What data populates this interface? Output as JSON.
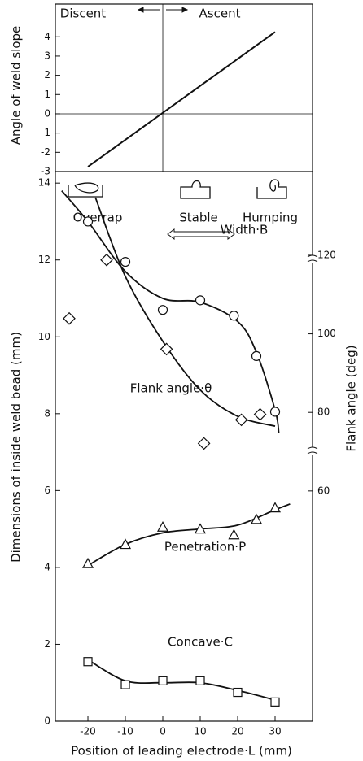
{
  "chart_data": [
    {
      "type": "line",
      "ylabel": "Angle of weld slope",
      "xlim": [
        -28.7,
        40
      ],
      "ylim": [
        -3,
        5.7
      ],
      "yticks": [
        -3,
        -2,
        -1,
        0,
        1,
        2,
        3,
        4
      ],
      "x": [
        -20,
        30
      ],
      "values": [
        -2.75,
        4.25
      ],
      "color": "#111111",
      "annotations": [
        "Discent",
        "Ascent"
      ]
    },
    {
      "type": "scatter",
      "xlabel": "Position of leading electrode·L (mm)",
      "ylabel": "Dimensions of inside weld bead (mm)",
      "y2label": "Flank angle (deg)",
      "xlim": [
        -28.7,
        40
      ],
      "xticks": [
        -20,
        -10,
        0,
        10,
        20,
        30
      ],
      "ylim": [
        0,
        14.3
      ],
      "yticks": [
        0,
        2,
        4,
        6,
        8,
        10,
        12,
        14
      ],
      "y2lim": [
        1.4,
        141.3
      ],
      "y2ticks": [
        60,
        80,
        100,
        120
      ],
      "annotations": [
        "Overrap",
        "Stable",
        "Humping"
      ],
      "series": [
        {
          "name": "Width·B",
          "marker": "circle",
          "color": "#111111",
          "x": [
            -20,
            -10,
            0,
            10,
            19,
            25,
            30
          ],
          "values": [
            13.0,
            11.95,
            10.7,
            10.95,
            10.55,
            9.5,
            8.05
          ],
          "curve_x": [
            -27,
            -20,
            -10,
            0,
            10,
            20,
            25,
            30,
            31
          ],
          "curve_values": [
            13.8,
            13.0,
            11.7,
            11.0,
            10.9,
            10.4,
            9.6,
            8.1,
            7.5
          ]
        },
        {
          "name": "Flank angle·θ",
          "marker": "diamond",
          "color": "#111111",
          "axis": "y2",
          "x": [
            -25,
            -15,
            1,
            11,
            21,
            26
          ],
          "values": [
            103.9,
            118.8,
            96.1,
            72.1,
            78.1,
            79.5
          ],
          "curve_x": [
            -18,
            -10,
            0,
            10,
            20,
            30
          ],
          "curve_values": [
            134.7,
            114.6,
            98.1,
            85.7,
            79.0,
            76.5
          ]
        },
        {
          "name": "Penetration·P",
          "marker": "triangle",
          "color": "#111111",
          "x": [
            -20,
            -10,
            0,
            10,
            19,
            25,
            30
          ],
          "values": [
            4.1,
            4.6,
            5.05,
            5.0,
            4.85,
            5.25,
            5.55
          ],
          "curve_x": [
            -20,
            -10,
            0,
            10,
            20,
            30,
            34
          ],
          "curve_values": [
            4.05,
            4.6,
            4.9,
            5.0,
            5.1,
            5.5,
            5.65
          ]
        },
        {
          "name": "Concave·C",
          "marker": "square",
          "color": "#111111",
          "x": [
            -20,
            -10,
            0,
            10,
            20,
            30
          ],
          "values": [
            1.55,
            0.95,
            1.05,
            1.05,
            0.75,
            0.5
          ],
          "curve_x": [
            -20,
            -10,
            0,
            10,
            20,
            30
          ],
          "curve_values": [
            1.6,
            1.05,
            1.0,
            1.0,
            0.8,
            0.55
          ]
        }
      ]
    }
  ]
}
